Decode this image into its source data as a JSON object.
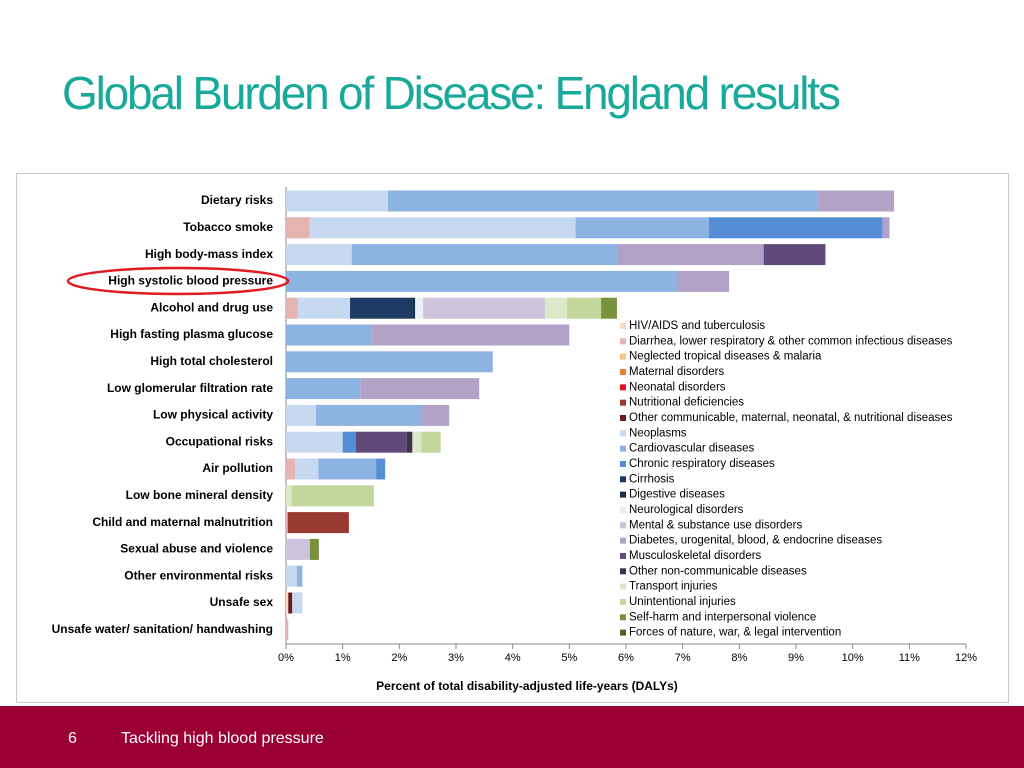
{
  "chart_data": {
    "type": "stacked-barh",
    "title": "Global Burden of Disease: England results",
    "xlabel": "Percent of total disability-adjusted life-years (DALYs)",
    "categories": [
      "Dietary risks",
      "Tobacco smoke",
      "High body-mass index",
      "High systolic blood pressure",
      "Alcohol and drug use",
      "High fasting plasma glucose",
      "High total cholesterol",
      "Low glomerular filtration rate",
      "Low physical activity",
      "Occupational risks",
      "Air pollution",
      "Low bone mineral density",
      "Child and maternal malnutrition",
      "Sexual abuse and violence",
      "Other environmental risks",
      "Unsafe sex",
      "Unsafe water/ sanitation/ handwashing"
    ],
    "xlim": [
      0,
      12
    ],
    "xticks": [
      {
        "value": 0,
        "label": "0%"
      },
      {
        "value": 1,
        "label": "1%"
      },
      {
        "value": 2,
        "label": "2%"
      },
      {
        "value": 3,
        "label": "3%"
      },
      {
        "value": 4,
        "label": "4%"
      },
      {
        "value": 5,
        "label": "5%"
      },
      {
        "value": 6,
        "label": "6%"
      },
      {
        "value": 7,
        "label": "7%"
      },
      {
        "value": 8,
        "label": "8%"
      },
      {
        "value": 9,
        "label": "9%"
      },
      {
        "value": 10,
        "label": "10%"
      },
      {
        "value": 11,
        "label": "11%"
      },
      {
        "value": 12,
        "label": "12%"
      }
    ],
    "series": [
      {
        "name": "HIV/AIDS and tuberculosis",
        "color": "#f8d9c8",
        "values": [
          null,
          null,
          null,
          null,
          null,
          null,
          null,
          null,
          null,
          null,
          null,
          null,
          null,
          null,
          null,
          0.04,
          null
        ]
      },
      {
        "name": "Diarrhea, lower respiratory & other common infectious diseases",
        "color": "#e6b4b0",
        "values": [
          null,
          0.42,
          null,
          null,
          0.21,
          null,
          null,
          null,
          null,
          null,
          0.16,
          null,
          0.03,
          null,
          null,
          null,
          0.04
        ]
      },
      {
        "name": "Neglected tropical diseases & malaria",
        "color": "#f6c48e",
        "values": [
          null,
          null,
          null,
          null,
          null,
          null,
          null,
          null,
          null,
          null,
          null,
          null,
          null,
          null,
          null,
          null,
          null
        ]
      },
      {
        "name": "Maternal disorders",
        "color": "#e7832b",
        "values": [
          null,
          null,
          null,
          null,
          null,
          null,
          null,
          null,
          null,
          null,
          null,
          null,
          null,
          null,
          null,
          null,
          null
        ]
      },
      {
        "name": "Neonatal disorders",
        "color": "#e3141c",
        "values": [
          null,
          null,
          null,
          null,
          null,
          null,
          null,
          null,
          null,
          null,
          null,
          null,
          null,
          null,
          null,
          null,
          null
        ]
      },
      {
        "name": "Nutritional deficiencies",
        "color": "#993a33",
        "values": [
          null,
          null,
          null,
          null,
          null,
          null,
          null,
          null,
          null,
          null,
          null,
          null,
          1.08,
          null,
          null,
          null,
          null
        ]
      },
      {
        "name": "Other communicable, maternal, neonatal, & nutritional diseases",
        "color": "#6a1c1c",
        "values": [
          null,
          null,
          null,
          null,
          null,
          null,
          null,
          null,
          null,
          null,
          null,
          null,
          null,
          null,
          null,
          0.07,
          null
        ]
      },
      {
        "name": "Neoplasms",
        "color": "#c6d9f0",
        "values": [
          1.8,
          4.69,
          1.16,
          null,
          0.92,
          null,
          null,
          null,
          0.53,
          1.0,
          0.41,
          null,
          null,
          null,
          0.19,
          0.18,
          null
        ]
      },
      {
        "name": "Cardiovascular diseases",
        "color": "#8db3e2",
        "values": [
          7.59,
          2.35,
          4.68,
          6.9,
          null,
          1.52,
          3.65,
          1.31,
          1.87,
          null,
          1.02,
          null,
          null,
          null,
          0.1,
          null,
          null
        ]
      },
      {
        "name": "Chronic respiratory diseases",
        "color": "#558ed5",
        "values": [
          null,
          3.07,
          null,
          null,
          null,
          null,
          null,
          null,
          null,
          0.23,
          0.16,
          null,
          null,
          null,
          null,
          null,
          null
        ]
      },
      {
        "name": "Cirrhosis",
        "color": "#1c3a63",
        "values": [
          null,
          null,
          null,
          null,
          1.11,
          null,
          null,
          null,
          null,
          null,
          null,
          null,
          null,
          null,
          null,
          null,
          null
        ]
      },
      {
        "name": "Digestive diseases",
        "color": "#1b2f4a",
        "values": [
          null,
          null,
          null,
          null,
          0.04,
          null,
          null,
          null,
          null,
          null,
          null,
          null,
          null,
          null,
          null,
          null,
          null
        ]
      },
      {
        "name": "Neurological disorders",
        "color": "#eeeef6",
        "values": [
          null,
          null,
          null,
          null,
          0.14,
          null,
          null,
          null,
          null,
          null,
          null,
          null,
          null,
          null,
          null,
          null,
          null
        ]
      },
      {
        "name": "Mental & substance use disorders",
        "color": "#cdc3dc",
        "values": [
          null,
          null,
          null,
          null,
          2.15,
          null,
          null,
          null,
          null,
          null,
          null,
          null,
          null,
          0.42,
          null,
          null,
          null
        ]
      },
      {
        "name": "Diabetes, urogenital, blood, & endocrine diseases",
        "color": "#b3a2c7",
        "values": [
          1.34,
          0.12,
          2.59,
          0.92,
          null,
          3.48,
          null,
          2.1,
          0.48,
          null,
          null,
          null,
          null,
          null,
          null,
          null,
          null
        ]
      },
      {
        "name": "Musculoskeletal disorders",
        "color": "#604a7b",
        "values": [
          null,
          null,
          1.09,
          null,
          null,
          null,
          null,
          null,
          null,
          0.9,
          null,
          null,
          null,
          null,
          null,
          null,
          null
        ]
      },
      {
        "name": "Other non-communicable diseases",
        "color": "#3f3151",
        "values": [
          null,
          null,
          null,
          null,
          null,
          null,
          null,
          null,
          null,
          0.1,
          null,
          null,
          null,
          null,
          null,
          null,
          null
        ]
      },
      {
        "name": "Transport injuries",
        "color": "#dde8c8",
        "values": [
          null,
          null,
          null,
          null,
          0.39,
          null,
          null,
          null,
          null,
          0.16,
          null,
          0.1,
          null,
          null,
          null,
          null,
          null
        ]
      },
      {
        "name": "Unintentional injuries",
        "color": "#c3d69b",
        "values": [
          null,
          null,
          null,
          null,
          0.6,
          null,
          null,
          null,
          null,
          0.34,
          null,
          1.45,
          null,
          null,
          null,
          null,
          null
        ]
      },
      {
        "name": "Self-harm and interpersonal violence",
        "color": "#77933c",
        "values": [
          null,
          null,
          null,
          null,
          0.28,
          null,
          null,
          null,
          null,
          null,
          null,
          null,
          null,
          0.16,
          null,
          null,
          null
        ]
      },
      {
        "name": "Forces of nature, war, & legal intervention",
        "color": "#4f6228",
        "values": [
          null,
          null,
          null,
          null,
          null,
          null,
          null,
          null,
          null,
          null,
          null,
          null,
          null,
          null,
          null,
          null,
          null
        ]
      }
    ]
  },
  "footer": {
    "number": "6",
    "text": "Tackling high blood pressure"
  }
}
